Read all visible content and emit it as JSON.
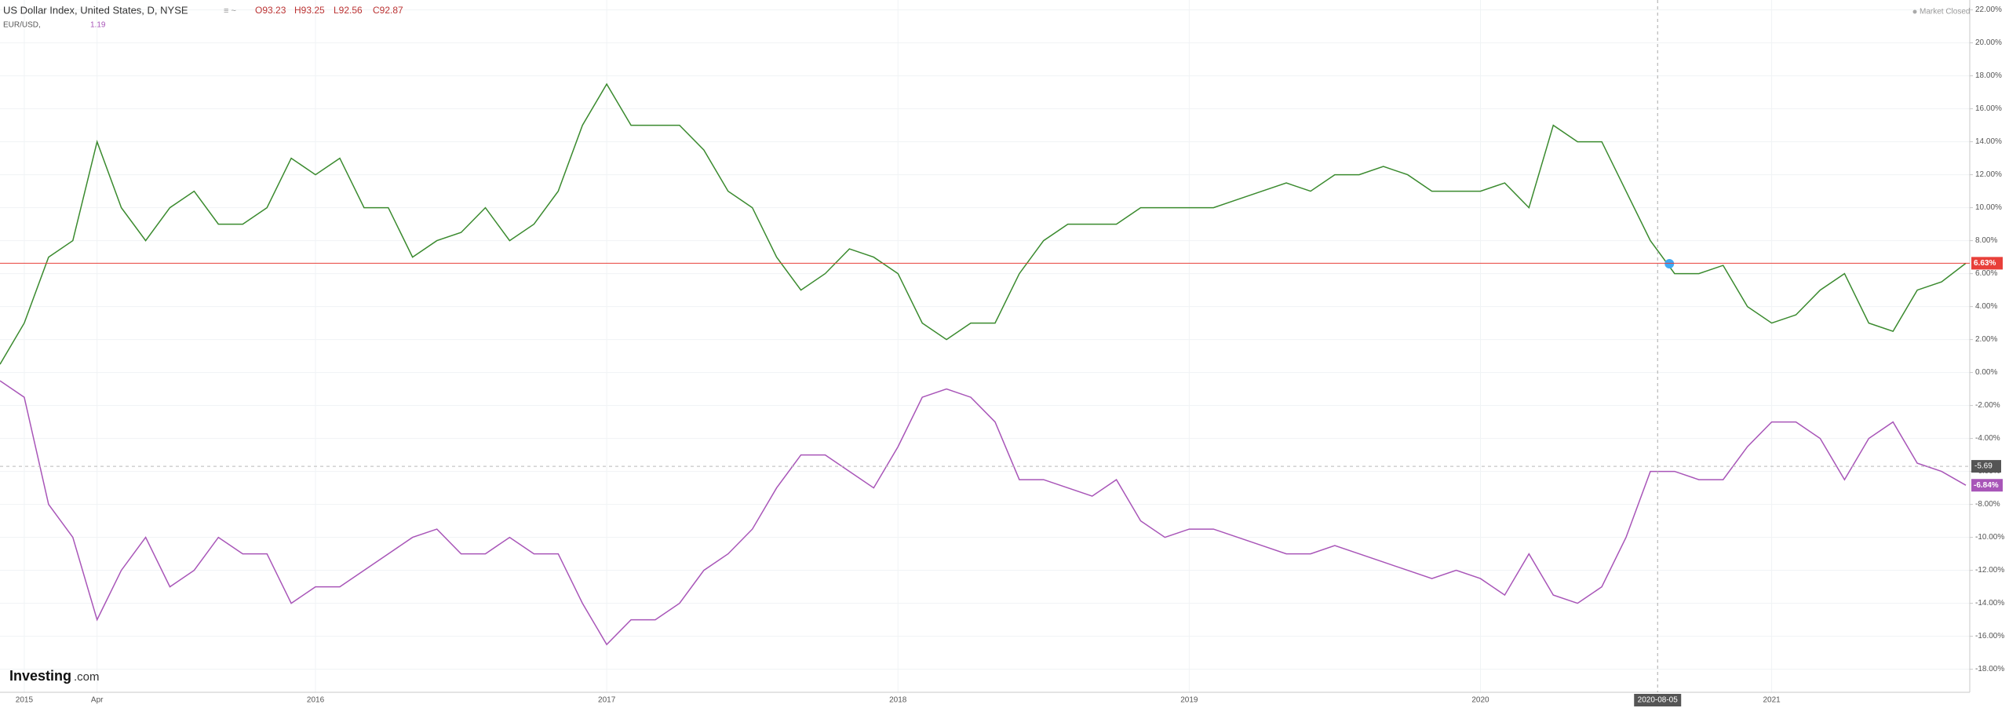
{
  "header": {
    "title": "US Dollar Index, United States, D, NYSE",
    "ohlc": [
      "O93.23",
      "H93.25",
      "L92.56",
      "C92.87"
    ],
    "compare_name": "EUR/USD,",
    "compare_value": "1.19",
    "status": "Market Closed",
    "logo_main": "Investing",
    "logo_suffix": ".com"
  },
  "chart_data": {
    "type": "line",
    "categories": [
      null,
      "2015",
      null,
      null,
      "Apr",
      null,
      null,
      null,
      null,
      null,
      null,
      null,
      null,
      "2016",
      null,
      null,
      null,
      null,
      null,
      null,
      null,
      null,
      null,
      null,
      null,
      "2017",
      null,
      null,
      null,
      null,
      null,
      null,
      null,
      null,
      null,
      null,
      null,
      "2018",
      null,
      null,
      null,
      null,
      null,
      null,
      null,
      null,
      null,
      null,
      null,
      "2019",
      null,
      null,
      null,
      null,
      null,
      null,
      null,
      null,
      null,
      null,
      null,
      "2020",
      null,
      null,
      null,
      null,
      null,
      null,
      null,
      null,
      null,
      null,
      null,
      "2021",
      null,
      null,
      null,
      null,
      null,
      null,
      null,
      null
    ],
    "series": [
      {
        "name": "US Dollar Index",
        "color": "#3a8a2e",
        "price_line_color": "#e8403a",
        "values": [
          0.5,
          3,
          7,
          8,
          14,
          10,
          8,
          10,
          11,
          9,
          9,
          10,
          13,
          12,
          13,
          10,
          10,
          7,
          8,
          8.5,
          10,
          8,
          9,
          11,
          15,
          17.5,
          15,
          15,
          15,
          13.5,
          11,
          10,
          7,
          5,
          6,
          7.5,
          7,
          6,
          3,
          2,
          3,
          3,
          6,
          8,
          9,
          9,
          9,
          10,
          10,
          10,
          10,
          10.5,
          11,
          11.5,
          11,
          12,
          12,
          12.5,
          12,
          11,
          11,
          11,
          11.5,
          10,
          15,
          14,
          14,
          11,
          8,
          6,
          6,
          6.5,
          4,
          3,
          3.5,
          5,
          6,
          3,
          2.5,
          5,
          5.5,
          6.63
        ],
        "value_labels": [
          null,
          null,
          null,
          null,
          null,
          null,
          null,
          null,
          null,
          null,
          null,
          null,
          null,
          null,
          null,
          null,
          null,
          null,
          null,
          null,
          null,
          null,
          null,
          null,
          null,
          null,
          null,
          null,
          null,
          null,
          null,
          null,
          null,
          null,
          null,
          null,
          null,
          null,
          null,
          null,
          null,
          null,
          null,
          null,
          null,
          null,
          null,
          null,
          null,
          null,
          null,
          null,
          null,
          null,
          null,
          null,
          null,
          null,
          null,
          null,
          null,
          null,
          null,
          null,
          null,
          null,
          null,
          null,
          null,
          null,
          null,
          null,
          null,
          null,
          null,
          null,
          null,
          null,
          null,
          null,
          null,
          "6.63%"
        ]
      },
      {
        "name": "EUR/USD",
        "color": "#a855b8",
        "price_line_color": "#a855b8",
        "values": [
          -0.5,
          -1.5,
          -8,
          -10,
          -15,
          -12,
          -10,
          -13,
          -12,
          -10,
          -11,
          -11,
          -14,
          -13,
          -13,
          -12,
          -11,
          -10,
          -9.5,
          -11,
          -11,
          -10,
          -11,
          -11,
          -14,
          -16.5,
          -15,
          -15,
          -14,
          -12,
          -11,
          -9.5,
          -7,
          -5,
          -5,
          -6,
          -7,
          -4.5,
          -1.5,
          -1,
          -1.5,
          -3,
          -6.5,
          -6.5,
          -7,
          -7.5,
          -6.5,
          -9,
          -10,
          -9.5,
          -9.5,
          -10,
          -10.5,
          -11,
          -11,
          -10.5,
          -11,
          -11.5,
          -12,
          -12.5,
          -12,
          -12.5,
          -13.5,
          -11,
          -13.5,
          -14,
          -13,
          -10,
          -6,
          -6,
          -6.5,
          -6.5,
          -4.5,
          -3,
          -3,
          -4,
          -6.5,
          -4,
          -3,
          -5.5,
          -6,
          -6.84
        ],
        "value_labels": [
          null,
          null,
          null,
          null,
          null,
          null,
          null,
          null,
          null,
          null,
          null,
          null,
          null,
          null,
          null,
          null,
          null,
          null,
          null,
          null,
          null,
          null,
          null,
          null,
          null,
          null,
          null,
          null,
          null,
          null,
          null,
          null,
          null,
          null,
          null,
          null,
          null,
          null,
          null,
          null,
          null,
          null,
          null,
          null,
          null,
          null,
          null,
          null,
          null,
          null,
          null,
          null,
          null,
          null,
          null,
          null,
          null,
          null,
          null,
          null,
          null,
          null,
          null,
          null,
          null,
          null,
          null,
          null,
          null,
          null,
          null,
          null,
          null,
          null,
          null,
          null,
          null,
          null,
          null,
          null,
          null,
          "-6.84%"
        ]
      }
    ],
    "crosshair_y": -5.69,
    "crosshair_x_label": "2020-08-05",
    "ylim": [
      -19.4,
      22.6
    ],
    "yticks": [
      {
        "value": 22,
        "label": "22.00%"
      },
      {
        "value": 20,
        "label": "20.00%"
      },
      {
        "value": 18,
        "label": "18.00%"
      },
      {
        "value": 16,
        "label": "16.00%"
      },
      {
        "value": 14,
        "label": "14.00%"
      },
      {
        "value": 12,
        "label": "12.00%"
      },
      {
        "value": 10,
        "label": "10.00%"
      },
      {
        "value": 8,
        "label": "8.00%"
      },
      {
        "value": 6,
        "label": "6.00%"
      },
      {
        "value": 4,
        "label": "4.00%"
      },
      {
        "value": 2,
        "label": "2.00%"
      },
      {
        "value": 0,
        "label": "0.00%"
      },
      {
        "value": -2,
        "label": "-2.00%"
      },
      {
        "value": -4,
        "label": "-4.00%"
      },
      {
        "value": -6,
        "label": "-6.00%"
      },
      {
        "value": -8,
        "label": "-8.00%"
      },
      {
        "value": -10,
        "label": "-10.00%"
      },
      {
        "value": -12,
        "label": "-12.00%"
      },
      {
        "value": -14,
        "label": "-14.00%"
      },
      {
        "value": -16,
        "label": "-16.00%"
      },
      {
        "value": -18,
        "label": "-18.00%"
      }
    ],
    "grid": true
  }
}
